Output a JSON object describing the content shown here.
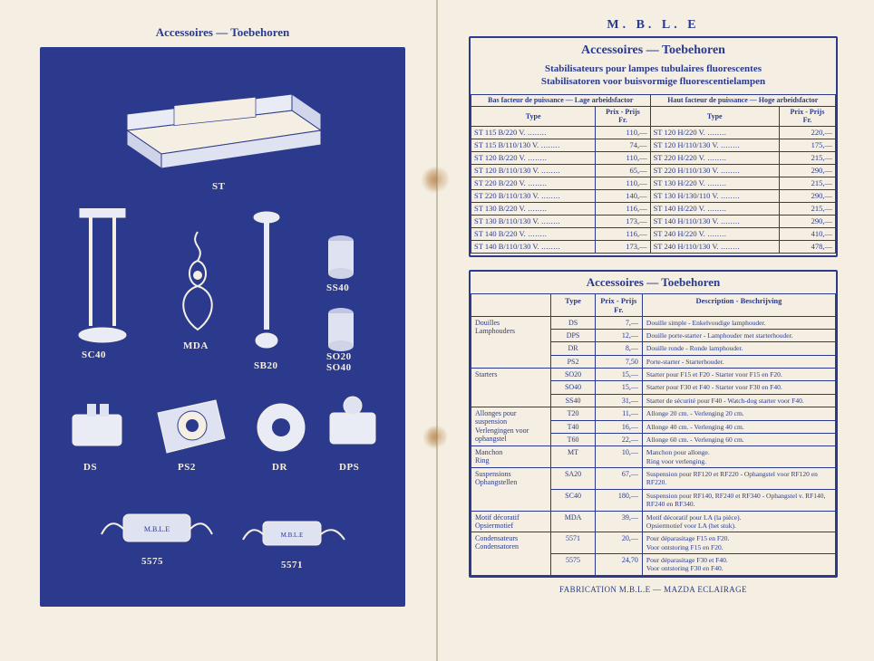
{
  "colors": {
    "ink": "#2b3a8c",
    "paper": "#f4efe2",
    "bg": "#d8d2c6",
    "stain": "#b27a3f"
  },
  "left": {
    "title": "Accessoires — Toebehoren",
    "labels": {
      "st": "ST",
      "sc40": "SC40",
      "mda": "MDA",
      "sb20": "SB20",
      "ss40": "SS40",
      "so20_so40": "SO20\nSO40",
      "ds": "DS",
      "ps2": "PS2",
      "dr": "DR",
      "dps": "DPS",
      "c5575": "5575",
      "c5571": "5571"
    }
  },
  "right": {
    "brand": "M. B. L. E",
    "title": "Accessoires — Toebehoren",
    "stab_title_fr": "Stabilisateurs pour lampes tubulaires fluorescentes",
    "stab_title_nl": "Stabilisatoren voor buisvormige fluorescentielampen",
    "col_left_head": "Bas facteur de puissance — Lage arbeidsfactor",
    "col_right_head": "Haut facteur de puissance — Hoge arbeidsfactor",
    "type_head": "Type",
    "price_head": "Prix - Prijs\nFr.",
    "stab_rows": [
      {
        "lt": "ST 115 B/220 V.",
        "lp": "110,—",
        "rt": "ST 120 H/220 V.",
        "rp": "220,—"
      },
      {
        "lt": "ST 115 B/110/130 V.",
        "lp": "74,—",
        "rt": "ST 120 H/110/130 V.",
        "rp": "175,—"
      },
      {
        "lt": "ST 120 B/220 V.",
        "lp": "110,—",
        "rt": "ST 220 H/220 V.",
        "rp": "215,—"
      },
      {
        "lt": "ST 120 B/110/130 V.",
        "lp": "65,—",
        "rt": "ST 220 H/110/130 V.",
        "rp": "290,—"
      },
      {
        "lt": "ST 220 B/220 V.",
        "lp": "110,—",
        "rt": "ST 130 H/220 V.",
        "rp": "215,—"
      },
      {
        "lt": "ST 220 B/110/130 V.",
        "lp": "140,—",
        "rt": "ST 130 H/130/110 V.",
        "rp": "290,—"
      },
      {
        "lt": "ST 130 B/220 V.",
        "lp": "116,—",
        "rt": "ST 140 H/220 V.",
        "rp": "215,—"
      },
      {
        "lt": "ST 130 B/110/130 V.",
        "lp": "173,—",
        "rt": "ST 140 H/110/130 V.",
        "rp": "290,—"
      },
      {
        "lt": "ST 140 B/220 V.",
        "lp": "116,—",
        "rt": "ST 240 H/220 V.",
        "rp": "410,—"
      },
      {
        "lt": "ST 140 B/110/130 V.",
        "lp": "173,—",
        "rt": "ST 240 H/110/130 V.",
        "rp": "478,—"
      }
    ],
    "acc_title": "Accessoires — Toebehoren",
    "acc_heads": {
      "blank": "",
      "type": "Type",
      "price": "Prix - Prijs\nFr.",
      "desc": "Description - Beschrijving"
    },
    "acc_rows": [
      {
        "cat": "Douilles\nLamphouders",
        "items": [
          {
            "type": "DS",
            "price": "7,—",
            "desc": "Douille simple - Enkelvoudige lamphouder."
          },
          {
            "type": "DPS",
            "price": "12,—",
            "desc": "Douille porte-starter - Lamphouder met starterhouder."
          },
          {
            "type": "DR",
            "price": "8,—",
            "desc": "Douille ronde - Ronde lamphouder."
          },
          {
            "type": "PS2",
            "price": "7,50",
            "desc": "Porte-starter - Starterhouder."
          }
        ]
      },
      {
        "cat": "Starters",
        "items": [
          {
            "type": "SO20",
            "price": "15,—",
            "desc": "Starter pour F15 et F20 - Starter voor F15 en F20."
          },
          {
            "type": "SO40",
            "price": "15,—",
            "desc": "Starter pour F30 et F40 - Starter voor F30 en F40."
          },
          {
            "type": "SS40",
            "price": "31,—",
            "desc": "Starter de sécurité pour F40 - Watch-dog starter voor F40."
          }
        ]
      },
      {
        "cat": "Allonges pour suspension\nVerlengingen voor ophangstel",
        "items": [
          {
            "type": "T20",
            "price": "11,—",
            "desc": "Allonge 20 cm. - Verlenging 20 cm."
          },
          {
            "type": "T40",
            "price": "16,—",
            "desc": "Allonge 40 cm. - Verlenging 40 cm."
          },
          {
            "type": "T60",
            "price": "22,—",
            "desc": "Allonge 60 cm. - Verlenging 60 cm."
          }
        ]
      },
      {
        "cat": "Manchon\nRing",
        "items": [
          {
            "type": "MT",
            "price": "10,—",
            "desc": "Manchon pour allonge.\nRing voor verlenging."
          }
        ]
      },
      {
        "cat": "Suspensions\nOphangstellen",
        "items": [
          {
            "type": "SA20",
            "price": "67,—",
            "desc": "Suspension pour RF120 et RF220 - Ophangstel voor RF120 en RF220."
          },
          {
            "type": "SC40",
            "price": "180,—",
            "desc": "Suspension pour RF140, RF240 et RF340 - Ophangstel v. RF140, RF240 en RF340."
          }
        ]
      },
      {
        "cat": "Motif décoratif\nOpsiermotief",
        "items": [
          {
            "type": "MDA",
            "price": "39,—",
            "desc": "Motif décoratif pour LA (la pièce).\nOpsiermotief voor LA (het stuk)."
          }
        ]
      },
      {
        "cat": "Condensateurs\nCondensatoren",
        "items": [
          {
            "type": "5571",
            "price": "20,—",
            "desc": "Pour déparasitage F15 en F20.\nVoor ontstoring F15 en F20."
          },
          {
            "type": "5575",
            "price": "24,70",
            "desc": "Pour déparasitage F30 et F40.\nVoor ontstoring F30 en F40."
          }
        ]
      }
    ],
    "footer": "FABRICATION M.B.L.E — MAZDA ECLAIRAGE"
  }
}
